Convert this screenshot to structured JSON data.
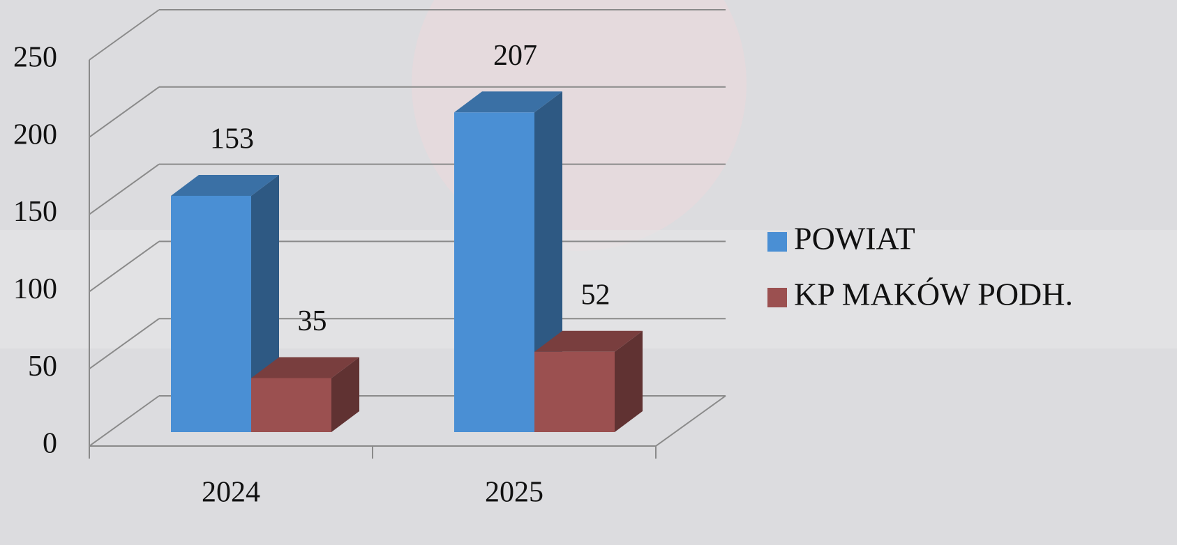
{
  "chart_data": {
    "type": "bar3d",
    "categories": [
      "2024",
      "2025"
    ],
    "series": [
      {
        "name": "POWIAT",
        "color": "#4a8fd4",
        "values": [
          153,
          207
        ]
      },
      {
        "name": "KP MAKÓW PODH.",
        "color": "#9b5050",
        "values": [
          35,
          52
        ]
      }
    ],
    "ylim": [
      0,
      250
    ],
    "yticks": [
      0,
      50,
      100,
      150,
      200,
      250
    ],
    "grid": true,
    "legend": "right"
  }
}
